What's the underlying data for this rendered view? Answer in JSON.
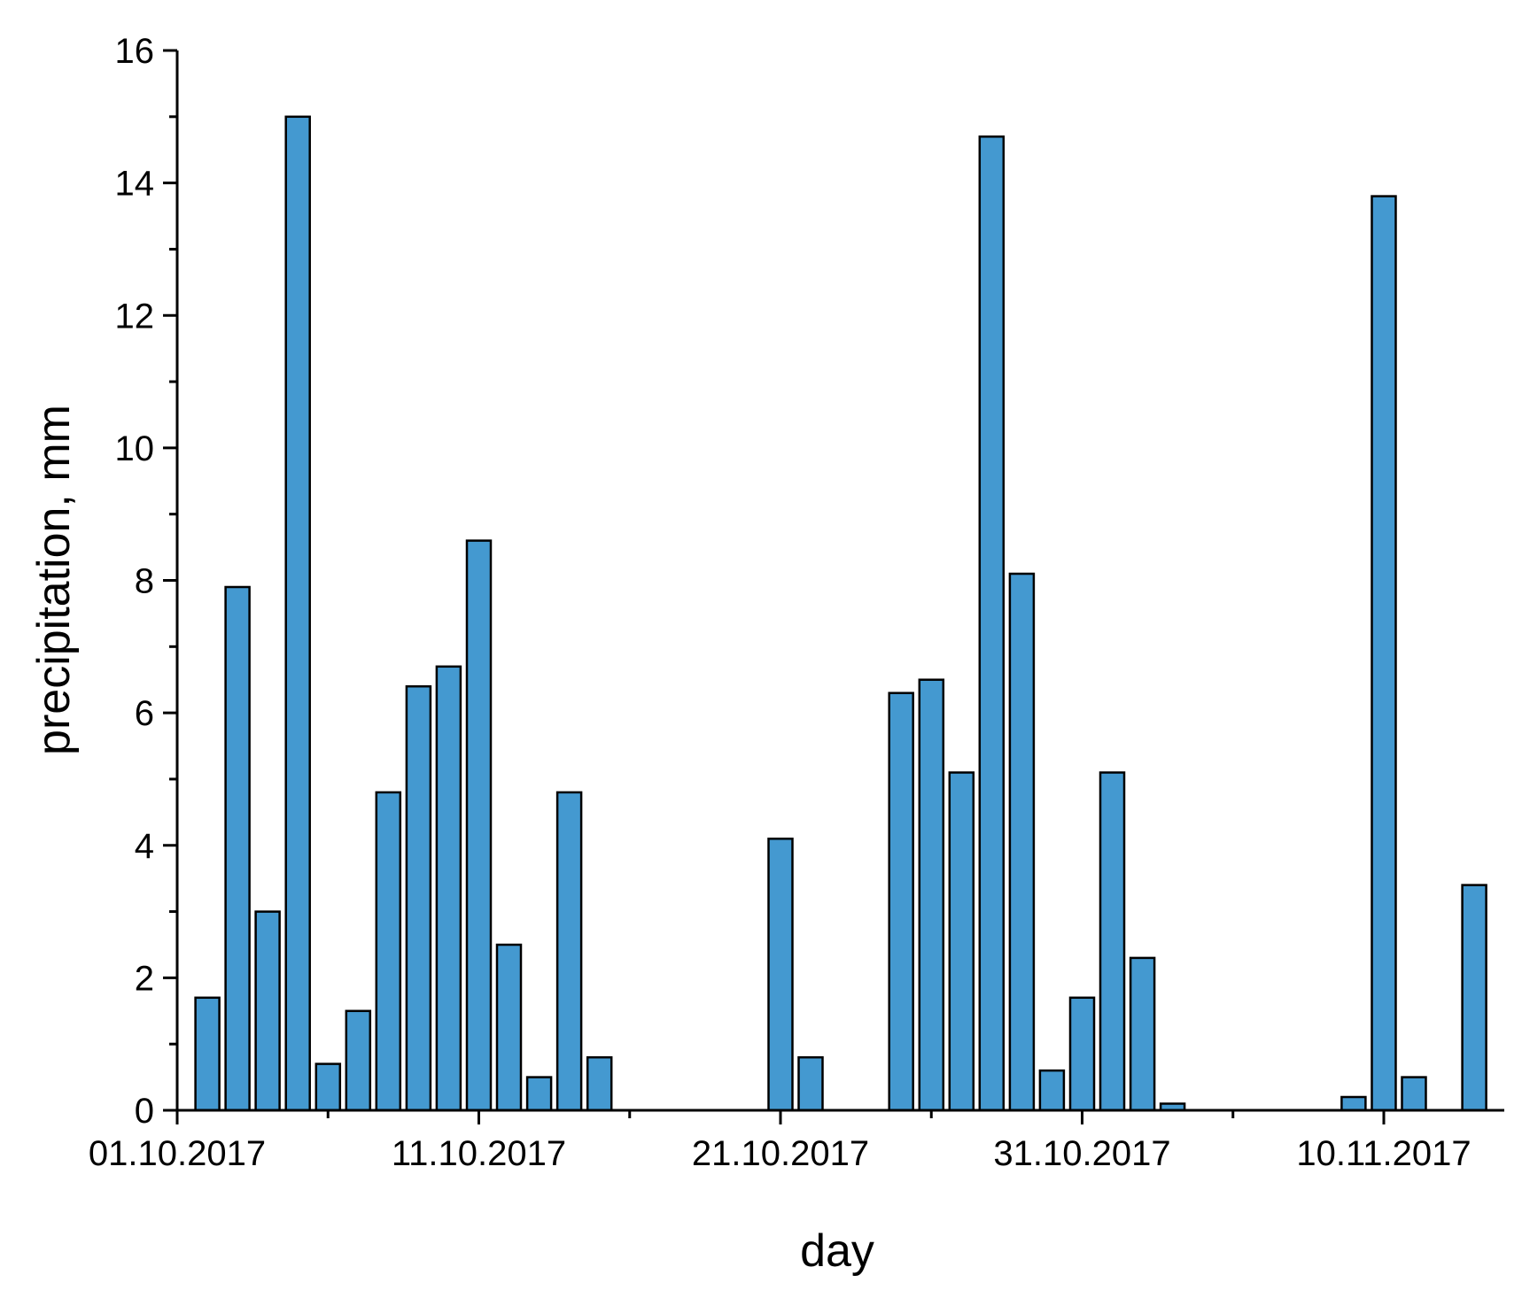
{
  "chart_data": {
    "type": "bar",
    "xlabel": "day",
    "ylabel": "precipitation, mm",
    "ylim": [
      0,
      16
    ],
    "yticks": [
      0,
      2,
      4,
      6,
      8,
      10,
      12,
      14,
      16
    ],
    "xticks": [
      "01.10.2017",
      "11.10.2017",
      "21.10.2017",
      "31.10.2017",
      "10.11.2017"
    ],
    "x_start": "01.10.2017",
    "x_end": "15.11.2017",
    "grid": false,
    "bar_color": "#4499D0",
    "bar_edge_color": "#000000",
    "bars": [
      {
        "date": "02.10.2017",
        "value": 1.7
      },
      {
        "date": "03.10.2017",
        "value": 7.9
      },
      {
        "date": "04.10.2017",
        "value": 3.0
      },
      {
        "date": "05.10.2017",
        "value": 15.0
      },
      {
        "date": "06.10.2017",
        "value": 0.7
      },
      {
        "date": "07.10.2017",
        "value": 1.5
      },
      {
        "date": "08.10.2017",
        "value": 4.8
      },
      {
        "date": "09.10.2017",
        "value": 6.4
      },
      {
        "date": "10.10.2017",
        "value": 6.7
      },
      {
        "date": "11.10.2017",
        "value": 8.6
      },
      {
        "date": "12.10.2017",
        "value": 2.5
      },
      {
        "date": "13.10.2017",
        "value": 0.5
      },
      {
        "date": "14.10.2017",
        "value": 4.8
      },
      {
        "date": "15.10.2017",
        "value": 0.8
      },
      {
        "date": "21.10.2017",
        "value": 4.1
      },
      {
        "date": "22.10.2017",
        "value": 0.8
      },
      {
        "date": "25.10.2017",
        "value": 6.3
      },
      {
        "date": "26.10.2017",
        "value": 6.5
      },
      {
        "date": "27.10.2017",
        "value": 5.1
      },
      {
        "date": "28.10.2017",
        "value": 14.7
      },
      {
        "date": "29.10.2017",
        "value": 8.1
      },
      {
        "date": "30.10.2017",
        "value": 0.6
      },
      {
        "date": "31.10.2017",
        "value": 1.7
      },
      {
        "date": "01.11.2017",
        "value": 5.1
      },
      {
        "date": "02.11.2017",
        "value": 2.3
      },
      {
        "date": "03.11.2017",
        "value": 0.1
      },
      {
        "date": "09.11.2017",
        "value": 0.2
      },
      {
        "date": "10.11.2017",
        "value": 13.8
      },
      {
        "date": "11.11.2017",
        "value": 0.5
      },
      {
        "date": "13.11.2017",
        "value": 3.4
      }
    ]
  }
}
